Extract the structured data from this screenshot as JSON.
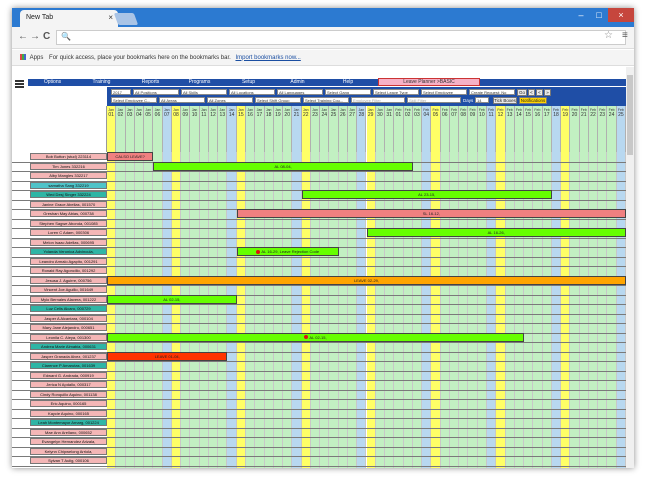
{
  "browser": {
    "tab_title": "New Tab",
    "tab_close": "×",
    "win_min": "–",
    "win_max": "□",
    "win_close": "×",
    "back": "←",
    "forward": "→",
    "reload": "C",
    "search_icon": "🔍",
    "star": "☆",
    "menu": "≡",
    "apps_label": "Apps",
    "bookmarks_text": "For quick access, place your bookmarks here on the bookmarks bar.",
    "import_link": "Import bookmarks now..."
  },
  "nav": {
    "items": [
      "Options",
      "Training",
      "Reports",
      "Programs",
      "Setup",
      "Admin",
      "Help"
    ],
    "leave_planner": "Leave Planner >BASIC"
  },
  "filters": {
    "row1": [
      "2017",
      "All Positions",
      "All Skills",
      "All Locations",
      "All Languages",
      "Select Gang",
      "Select Leave Type",
      "Select Employee",
      "Create Request: No"
    ],
    "go": "Go",
    "nav_btns": [
      "<",
      "<",
      "»"
    ],
    "row2": [
      "Select Employee C...",
      "All Areas",
      "All Zones",
      "Select Shift Group",
      "Select Training Cou..."
    ],
    "emp_filter_placeholder": "Employee Filter",
    "skill_filter_placeholder": "Skill Filter",
    "days_label": "Days",
    "days_value": "14",
    "tick_boxes": "Tick Boxes",
    "notifications": "Notifications"
  },
  "calendar": {
    "months": [
      "Jan",
      "Jan",
      "Jan",
      "Jan",
      "Jan",
      "Jan",
      "Jan",
      "Jan",
      "Jan",
      "Jan",
      "Jan",
      "Jan",
      "Jan",
      "Jan",
      "Jan",
      "Jan",
      "Jan",
      "Jan",
      "Jan",
      "Jan",
      "Jan",
      "Jan",
      "Jan",
      "Jan",
      "Jan",
      "Jan",
      "Jan",
      "Jan",
      "Jan",
      "Jan",
      "Jan",
      "Feb",
      "Feb",
      "Feb",
      "Feb",
      "Feb",
      "Feb",
      "Feb",
      "Feb",
      "Feb",
      "Feb",
      "Feb",
      "Feb",
      "Feb",
      "Feb",
      "Feb",
      "Feb",
      "Feb",
      "Feb",
      "Feb",
      "Feb",
      "Feb",
      "Feb",
      "Feb",
      "Feb",
      "Feb"
    ],
    "days": [
      "01",
      "02",
      "03",
      "04",
      "05",
      "06",
      "07",
      "08",
      "09",
      "10",
      "11",
      "12",
      "13",
      "14",
      "15",
      "16",
      "17",
      "18",
      "19",
      "20",
      "21",
      "22",
      "23",
      "24",
      "25",
      "26",
      "27",
      "28",
      "29",
      "30",
      "31",
      "01",
      "02",
      "03",
      "04",
      "05",
      "06",
      "07",
      "08",
      "09",
      "10",
      "11",
      "12",
      "13",
      "14",
      "15",
      "16",
      "17",
      "18",
      "19",
      "20",
      "21",
      "22",
      "23",
      "24",
      "25"
    ],
    "column_colors": [
      "#ffff66",
      "#c2f0c2",
      "#c2f0c2",
      "#c2f0c2",
      "#c2f0c2",
      "#c2f0c2",
      "#b8d8f0",
      "#ffff66",
      "#c2f0c2",
      "#c2f0c2",
      "#c2f0c2",
      "#c2f0c2",
      "#c2f0c2",
      "#b8d8f0",
      "#ffff66",
      "#c2f0c2",
      "#c2f0c2",
      "#c2f0c2",
      "#c2f0c2",
      "#c2f0c2",
      "#b8d8f0",
      "#ffff66",
      "#c2f0c2",
      "#c2f0c2",
      "#c2f0c2",
      "#c2f0c2",
      "#c2f0c2",
      "#b8d8f0",
      "#ffff66",
      "#c2f0c2",
      "#c2f0c2",
      "#c2f0c2",
      "#c2f0c2",
      "#c2f0c2",
      "#b8d8f0",
      "#ffff66",
      "#c2f0c2",
      "#c2f0c2",
      "#c2f0c2",
      "#c2f0c2",
      "#c2f0c2",
      "#b8d8f0",
      "#ffff66",
      "#c2f0c2",
      "#c2f0c2",
      "#c2f0c2",
      "#c2f0c2",
      "#c2f0c2",
      "#b8d8f0",
      "#ffff66",
      "#c2f0c2",
      "#c2f0c2",
      "#c2f0c2",
      "#c2f0c2",
      "#c2f0c2",
      "#b8d8f0"
    ]
  },
  "employees": [
    {
      "name": "Bob Button (stud) 223114",
      "color": "#f4b6b6"
    },
    {
      "name": "Tim Jones 332216",
      "color": "#f4b6b6"
    },
    {
      "name": "Alby Mangles 332217",
      "color": "#f4b6b6"
    },
    {
      "name": "samatha Sang 332219",
      "color": "#4fc3c8"
    },
    {
      "name": "Wed Desj Singer 332224",
      "color": "#2fb5a5"
    },
    {
      "name": "Janine Grace Abellas, 001570",
      "color": "#f4b6b6"
    },
    {
      "name": "Greshan May Abias, 000738",
      "color": "#f4b6b6"
    },
    {
      "name": "Stephen Sagwe Abonda, 001085",
      "color": "#f4b6b6"
    },
    {
      "name": "Loren C Adam, 000306",
      "color": "#f4b6b6"
    },
    {
      "name": "Melon Isaac Adellas, 000695",
      "color": "#f4b6b6"
    },
    {
      "name": "Yolanda Veronica Advincula,",
      "color": "#2fb5a5"
    },
    {
      "name": "Leandro Armalo Agapito, 001291",
      "color": "#f4b6b6"
    },
    {
      "name": "Ronald Ray Agoncillo, 001292",
      "color": "#f4b6b6"
    },
    {
      "name": "Jesusa J. Aguirre, 000756",
      "color": "#f4b6b6"
    },
    {
      "name": "Vincent Joe Aguillo, 001649",
      "color": "#f4b6b6"
    },
    {
      "name": "Mylo Bernales Alavera, 001222",
      "color": "#f4b6b6"
    },
    {
      "name": "Luz Celis Alcaro, 000729",
      "color": "#2fb5a5"
    },
    {
      "name": "Jasper A Alcantara, 000104",
      "color": "#f4b6b6"
    },
    {
      "name": "Mary Jane Alejandro, 000651",
      "color": "#f4b6b6"
    },
    {
      "name": "Leonila C. Aleya, 001300",
      "color": "#f4b6b6"
    },
    {
      "name": "Andrea Marie Almabia, 000631",
      "color": "#2fb5a5"
    },
    {
      "name": "Jasper Granada Alvez, 001237",
      "color": "#f4b6b6"
    },
    {
      "name": "Clarence P Amarutas, 001639",
      "color": "#2fb5a5"
    },
    {
      "name": "Edward G. Andrada, 000919",
      "color": "#f4b6b6"
    },
    {
      "name": "Jerica N Apdallo, 000317",
      "color": "#f4b6b6"
    },
    {
      "name": "Cindy Ronquillo Aquino, 001138",
      "color": "#f4b6b6"
    },
    {
      "name": "Eric Aquino, 000165",
      "color": "#f4b6b6"
    },
    {
      "name": "Kaycie Aquino, 000165",
      "color": "#f4b6b6"
    },
    {
      "name": "Leah Montemayor Arnarg, 001224",
      "color": "#2fb5a5"
    },
    {
      "name": "Mae Ann Arellano, 000652",
      "color": "#f4b6b6"
    },
    {
      "name": "Evangelyn Hernandez Arizala,",
      "color": "#f4b6b6"
    },
    {
      "name": "Kelynn Chipwelong Arriola,",
      "color": "#f4b6b6"
    },
    {
      "name": "Sylvan T Aulig, 000106",
      "color": "#f4b6b6"
    }
  ],
  "leave_bars": [
    {
      "label": "CALSO LEAVE?",
      "color": "#f08080",
      "row": 0,
      "start": 0,
      "end": 5,
      "mark": false
    },
    {
      "label": "AL 08-04,",
      "color": "#66ff00",
      "row": 1,
      "start": 5,
      "end": 33,
      "mark": false
    },
    {
      "label": "AL 23-15,",
      "color": "#66ff00",
      "row": 4,
      "start": 21,
      "end": 48,
      "mark": false
    },
    {
      "label": "SL 16-12,",
      "color": "#f08080",
      "row": 6,
      "start": 14,
      "end": 56,
      "mark": false
    },
    {
      "label": "AL 16-26,",
      "color": "#66ff00",
      "row": 8,
      "start": 28,
      "end": 56,
      "mark": false
    },
    {
      "label": "AL 16-29, Leave Rejection Code",
      "color": "#66ff00",
      "row": 10,
      "start": 14,
      "end": 25,
      "mark": true
    },
    {
      "label": "LEAVE 02-29,",
      "color": "#ffa500",
      "row": 13,
      "start": 0,
      "end": 56,
      "mark": false
    },
    {
      "label": "AL 02-15,",
      "color": "#66ff00",
      "row": 15,
      "start": 0,
      "end": 14,
      "mark": false
    },
    {
      "label": "AL 02-15,",
      "color": "#66ff00",
      "row": 19,
      "start": 0,
      "end": 45,
      "mark": true
    },
    {
      "label": "LEAVE 01-04,",
      "color": "#ff3300",
      "row": 21,
      "start": 0,
      "end": 13,
      "mark": false
    }
  ]
}
